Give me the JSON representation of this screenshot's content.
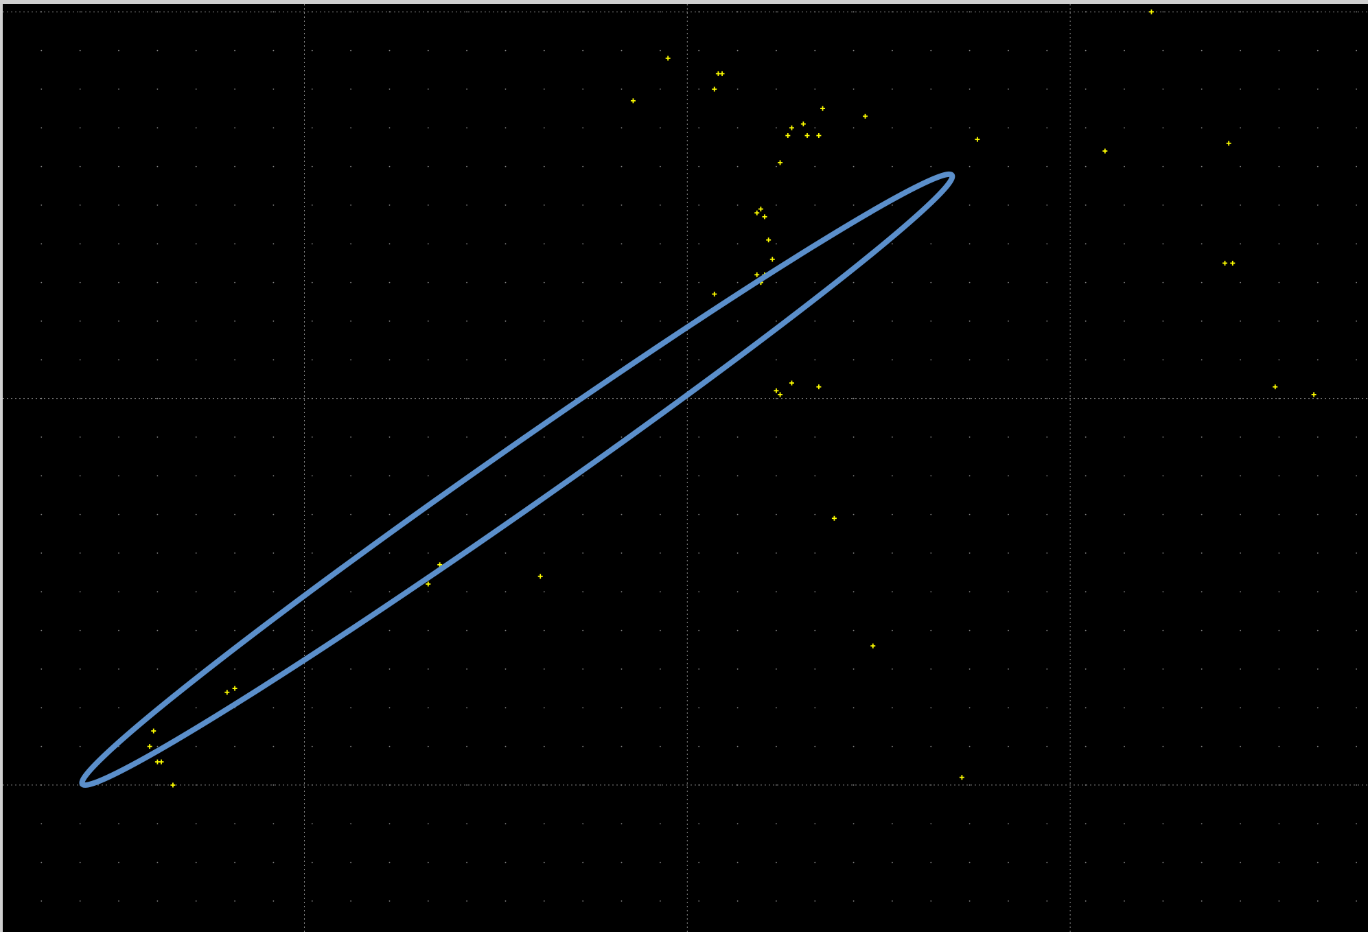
{
  "chart_data": {
    "type": "scatter",
    "title": "",
    "xlabel": "",
    "ylabel": "",
    "xlim": [
      0,
      3.53
    ],
    "ylim": [
      -0.38,
      2.02
    ],
    "grid": {
      "major": true,
      "minor_dots": true
    },
    "legend": "none",
    "series": [
      {
        "marker": "+",
        "color": "#ffff00",
        "x": [
          0.38,
          0.4,
          0.41,
          0.39,
          0.44,
          0.58,
          0.6,
          1.1,
          1.13,
          1.39,
          1.63,
          1.72,
          1.85,
          1.86,
          1.84,
          1.96,
          1.97,
          1.96,
          1.95,
          1.98,
          1.99,
          1.97,
          1.95,
          1.96,
          1.84,
          2.01,
          2.03,
          2.04,
          2.12,
          2.23,
          2.08,
          2.07,
          2.11,
          2.25,
          2.15,
          2.01,
          2.0,
          2.04,
          2.11,
          2.48,
          2.52,
          2.85,
          3.18,
          3.29,
          3.39,
          3.16,
          3.17,
          2.97
        ],
        "y": [
          0.1,
          0.06,
          0.06,
          0.14,
          0.0,
          0.24,
          0.25,
          0.52,
          0.57,
          0.54,
          1.77,
          1.88,
          1.84,
          1.84,
          1.27,
          1.3,
          1.32,
          1.3,
          1.32,
          1.41,
          1.36,
          1.47,
          1.48,
          1.49,
          1.8,
          1.61,
          1.68,
          1.7,
          1.75,
          1.73,
          1.68,
          1.71,
          1.68,
          0.36,
          0.69,
          1.01,
          1.02,
          1.04,
          1.03,
          0.02,
          1.67,
          1.64,
          1.35,
          1.03,
          1.01,
          1.35,
          1.66,
          2.0
        ]
      }
    ],
    "annotations": [
      {
        "shape": "ellipse",
        "color": "#5b8fcb",
        "center": [
          1.33,
          0.79
        ],
        "x_extent": [
          0.26,
          2.51
        ],
        "y_extent": [
          0.0,
          1.58
        ]
      }
    ],
    "colors": {
      "background": "#000000",
      "grid": "#8a8a8a",
      "marker": "#ffff00",
      "ellipse": "#5b8fcb",
      "border": "#cfcfcf"
    }
  }
}
